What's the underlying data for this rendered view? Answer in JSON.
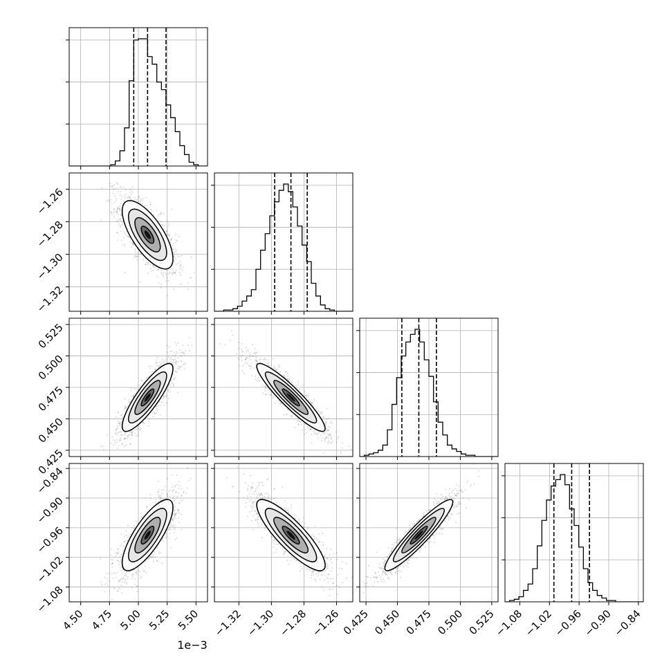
{
  "chart_data": {
    "type": "corner",
    "offset_text": "1e−3",
    "params": [
      {
        "range": [
          4.4,
          5.6
        ],
        "ticks": [
          "4.50",
          "4.75",
          "5.00",
          "5.25",
          "5.50"
        ],
        "tick_values": [
          4.5,
          4.75,
          5.0,
          5.25,
          5.5
        ],
        "mean": 5.08,
        "sd": 0.11,
        "quantiles": [
          4.96,
          5.08,
          5.24
        ],
        "hist": [
          0,
          0,
          0,
          0,
          0,
          0,
          0,
          0,
          0,
          1,
          4,
          12,
          30,
          67,
          99,
          100,
          100,
          86,
          80,
          66,
          60,
          48,
          38,
          27,
          16,
          9,
          3,
          1,
          0,
          0
        ]
      },
      {
        "range": [
          -1.335,
          -1.25
        ],
        "ticks": [
          "−1.32",
          "−1.30",
          "−1.28",
          "−1.26"
        ],
        "tick_values": [
          -1.32,
          -1.3,
          -1.28,
          -1.26
        ],
        "mean": -1.288,
        "sd": 0.0105,
        "quantiles": [
          -1.298,
          -1.288,
          -1.278
        ],
        "hist": [
          0,
          0,
          1,
          1,
          2,
          4,
          8,
          12,
          17,
          33,
          48,
          61,
          75,
          86,
          95,
          100,
          94,
          82,
          67,
          52,
          39,
          22,
          12,
          5,
          2,
          1,
          0,
          0,
          0,
          0
        ]
      },
      {
        "range": [
          0.42,
          0.53
        ],
        "ticks": [
          "0.425",
          "0.450",
          "0.475",
          "0.500",
          "0.525"
        ],
        "tick_values": [
          0.425,
          0.45,
          0.475,
          0.5,
          0.525
        ],
        "mean": 0.467,
        "sd": 0.0135,
        "quantiles": [
          0.4535,
          0.467,
          0.481
        ],
        "hist": [
          0,
          1,
          2,
          3,
          5,
          9,
          21,
          41,
          62,
          79,
          90,
          96,
          100,
          90,
          76,
          63,
          43,
          27,
          17,
          9,
          6,
          4,
          2,
          1,
          1,
          0,
          0,
          0,
          0,
          0
        ]
      },
      {
        "range": [
          -1.11,
          -0.83
        ],
        "ticks": [
          "−1.08",
          "−1.02",
          "−0.96",
          "−0.90",
          "−0.84"
        ],
        "tick_values": [
          -1.08,
          -1.02,
          -0.96,
          -0.9,
          -0.84
        ],
        "mean": -0.975,
        "sd": 0.036,
        "quantiles": [
          -1.011,
          -0.975,
          -0.939
        ],
        "hist": [
          0,
          1,
          2,
          4,
          9,
          14,
          26,
          44,
          64,
          80,
          91,
          96,
          100,
          92,
          73,
          60,
          43,
          26,
          15,
          9,
          5,
          3,
          1,
          1,
          0,
          0,
          0,
          0,
          0,
          0
        ]
      }
    ],
    "correlations": [
      [
        1,
        -0.7,
        0.85,
        0.78
      ],
      [
        -0.7,
        1,
        -0.92,
        -0.85
      ],
      [
        0.85,
        -0.92,
        1,
        0.93
      ],
      [
        0.78,
        -0.85,
        0.93,
        1
      ]
    ],
    "quantile_levels": [
      0.16,
      0.5,
      0.84
    ],
    "contour_levels": [
      0.5,
      1.0,
      1.5,
      2.0
    ],
    "grid": true,
    "legend": "none"
  }
}
